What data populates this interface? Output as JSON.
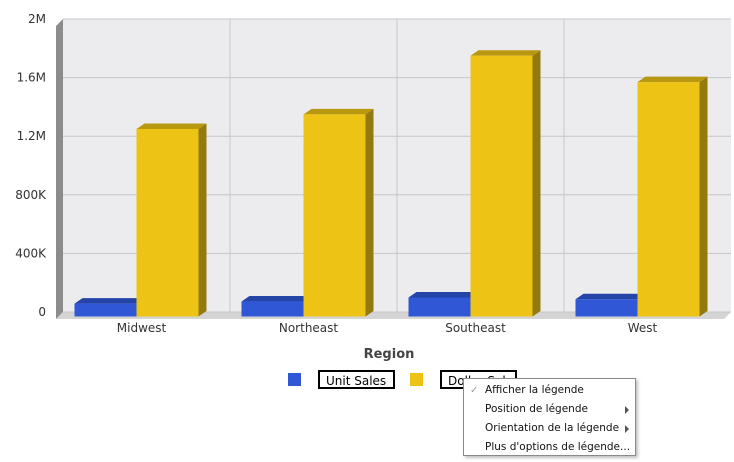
{
  "chart_data": {
    "type": "bar",
    "categories": [
      "Midwest",
      "Northeast",
      "Southeast",
      "West"
    ],
    "series": [
      {
        "name": "Unit Sales",
        "values": [
          88000,
          102000,
          130000,
          118000
        ],
        "color": "#2f57d6"
      },
      {
        "name": "Dollar Sales",
        "values": [
          1280000,
          1380000,
          1780000,
          1600000
        ],
        "color": "#edc316"
      }
    ],
    "xlabel": "Region",
    "ylabel": "",
    "ylim": [
      0,
      2000000
    ],
    "yticks": [
      "0",
      "400K",
      "800K",
      "1.2M",
      "1.6M",
      "2M"
    ],
    "grid": true,
    "legend": "bottom"
  },
  "legend": {
    "items": [
      {
        "label": "Unit Sales",
        "color": "#2f57d6"
      },
      {
        "label": "Dollar Sales",
        "color": "#edc316"
      }
    ]
  },
  "context_menu": {
    "items": [
      {
        "label": "Afficher la légende",
        "checked": true,
        "submenu": false
      },
      {
        "label": "Position de légende",
        "checked": false,
        "submenu": true
      },
      {
        "label": "Orientation de la légende",
        "checked": false,
        "submenu": true
      },
      {
        "label": "Plus d'options de légende...",
        "checked": false,
        "submenu": false
      }
    ],
    "check_glyph": "✓"
  }
}
